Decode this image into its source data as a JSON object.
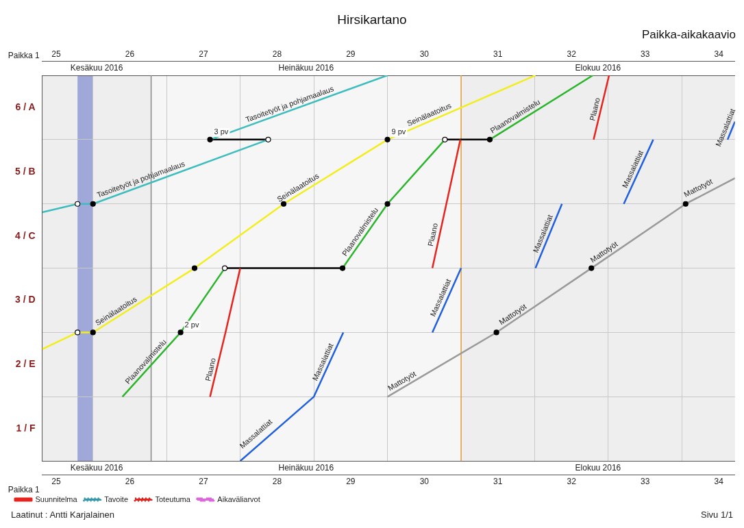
{
  "chart_data": {
    "type": "line",
    "title": "Hirsikartano",
    "subtitle": "Paikka-aikakaavio",
    "ylabel": "Paikka 1",
    "xlim": [
      25.31,
      34.72
    ],
    "ylim": [
      0,
      6
    ],
    "x2lim": [
      25.31,
      34.72
    ],
    "xticks": [
      {
        "value": 25.5,
        "label": "25"
      },
      {
        "value": 26,
        "label": null
      },
      {
        "value": 26.5,
        "label": "26"
      },
      {
        "value": 27,
        "label": null
      },
      {
        "value": 27.5,
        "label": "27"
      },
      {
        "value": 28,
        "label": null
      },
      {
        "value": 28.5,
        "label": "28"
      },
      {
        "value": 29,
        "label": null
      },
      {
        "value": 29.5,
        "label": "29"
      },
      {
        "value": 30,
        "label": null
      },
      {
        "value": 30.5,
        "label": "30"
      },
      {
        "value": 31,
        "label": null
      },
      {
        "value": 31.5,
        "label": "31"
      },
      {
        "value": 32,
        "label": null
      },
      {
        "value": 32.5,
        "label": "32"
      },
      {
        "value": 33,
        "label": null
      },
      {
        "value": 33.5,
        "label": "33"
      },
      {
        "value": 34,
        "label": null
      },
      {
        "value": 34.5,
        "label": "34"
      }
    ],
    "x2ticks": [
      {
        "value": 25.5,
        "label": "25"
      },
      {
        "value": 26.5,
        "label": "26"
      },
      {
        "value": 27.5,
        "label": "27"
      },
      {
        "value": 28.5,
        "label": "28"
      },
      {
        "value": 29.5,
        "label": "29"
      },
      {
        "value": 30.5,
        "label": "30"
      },
      {
        "value": 31.5,
        "label": "31"
      },
      {
        "value": 32.5,
        "label": "32"
      },
      {
        "value": 33.5,
        "label": "33"
      },
      {
        "value": 34.5,
        "label": "34"
      }
    ],
    "yticks": [
      {
        "value": 0,
        "label": null
      },
      {
        "value": 0.5,
        "label": "1 / F"
      },
      {
        "value": 1,
        "label": null
      },
      {
        "value": 1.5,
        "label": "2 / E"
      },
      {
        "value": 2,
        "label": null
      },
      {
        "value": 2.5,
        "label": "3 / D"
      },
      {
        "value": 3,
        "label": null
      },
      {
        "value": 3.5,
        "label": "4 / C"
      },
      {
        "value": 4,
        "label": null
      },
      {
        "value": 4.5,
        "label": "5 / B"
      },
      {
        "value": 5,
        "label": null
      },
      {
        "value": 5.5,
        "label": "6 / A"
      },
      {
        "value": 6,
        "label": null
      }
    ],
    "grid": true,
    "legend": "bottom",
    "marker": "none",
    "line_style": "solid",
    "series": [
      {
        "color": "#3dbdbd",
        "x": [
          25.31,
          25.79,
          26.0,
          28.38,
          null,
          27.59,
          30.0
        ],
        "values": [
          3.87,
          4,
          4,
          5,
          null,
          5,
          6
        ]
      },
      {
        "color": "#f2ee1e",
        "x": [
          25.31,
          25.79,
          26.0,
          27.38,
          28.59,
          30.0,
          32.01
        ],
        "values": [
          1.74,
          2,
          2,
          3,
          4,
          5,
          6
        ]
      },
      {
        "color": "#2bb52b",
        "x": [
          26.4,
          27.19,
          27.79,
          null,
          29.39,
          30.0,
          30.78,
          null,
          31.39,
          32.79
        ],
        "values": [
          1,
          2,
          3,
          null,
          3,
          4,
          5,
          null,
          5,
          6
        ]
      },
      {
        "color": "#e8231e",
        "x": [
          27.59,
          27.8,
          28.0,
          null,
          30.61,
          30.8,
          30.99,
          null,
          32.8,
          33.01
        ],
        "values": [
          1,
          2,
          3,
          null,
          3,
          4,
          5,
          null,
          5,
          6
        ]
      },
      {
        "color": "#1f5fe0",
        "x": [
          28.0,
          29.0,
          29.4,
          null,
          30.61,
          31.0,
          null,
          32.01,
          32.37,
          null,
          33.21,
          33.61,
          null,
          34.62,
          34.72
        ],
        "values": [
          0,
          1,
          2,
          null,
          2,
          3,
          null,
          3,
          4,
          null,
          4,
          5,
          null,
          5,
          5.28
        ]
      },
      {
        "color": "#9a9a9a",
        "x": [
          30.0,
          31.48,
          32.77,
          34.05,
          34.72
        ],
        "values": [
          1,
          2,
          3,
          4,
          4.4
        ]
      },
      {
        "color": "#000000",
        "x": [
          27.59,
          28.38,
          null,
          27.79,
          29.39,
          null,
          30.78,
          31.39
        ],
        "values": [
          5,
          5,
          null,
          3,
          3,
          null,
          5,
          5
        ]
      },
      {
        "type": "scatter",
        "marker": "circle",
        "color": "#000000",
        "x": [
          26.0,
          26.0,
          27.38,
          28.59,
          30.0,
          30.0,
          27.19,
          29.39,
          31.39,
          31.48,
          32.77,
          34.05,
          27.59
        ],
        "values": [
          4,
          2,
          3,
          4,
          4,
          5,
          2,
          3,
          5,
          2,
          3,
          4,
          5
        ]
      },
      {
        "type": "scatter",
        "marker": "circle",
        "color": "#ffffff",
        "x": [
          25.79,
          25.79,
          28.38,
          27.79,
          30.78
        ],
        "values": [
          4,
          2,
          5,
          3,
          5
        ]
      },
      {
        "name": "Suunnitelma",
        "color": "#e8231e",
        "line_style": "solid"
      },
      {
        "name": "Tavoite",
        "color": "#3399aa",
        "line_style": "dotted"
      },
      {
        "name": "Toteutuma",
        "color": "#e8231e",
        "line_style": "dotted"
      },
      {
        "name": "Aikaväliarvot",
        "color": "#dd66dd",
        "line_style": "dashed"
      }
    ],
    "ref_lines": [
      {
        "axis": "x",
        "value": 26.79,
        "color": "#888888"
      },
      {
        "axis": "x",
        "value": 31.0,
        "color": "#e8a040"
      }
    ],
    "bands": [
      {
        "axis": "x",
        "from": 25.79,
        "to": 26.0,
        "color": "#9fa8d8"
      },
      {
        "axis": "x",
        "from": 25.31,
        "to": 26.79,
        "label": "Kesäkuu 2016",
        "color": "#eeeeee"
      },
      {
        "axis": "x",
        "from": 26.79,
        "to": 31.0,
        "label": "Heinäkuu 2016",
        "color": "#f6f6f6"
      },
      {
        "axis": "x",
        "from": 31.0,
        "to": 34.72,
        "label": "Elokuu 2016",
        "color": "#eeeeee"
      }
    ],
    "annotations": [
      "Laatinut : Antti Karjalainen",
      "Sivu 1/1",
      {
        "text": "Tasoitetyöt ja pohjamaalaus",
        "x": 26.68,
        "y": 4.29
      },
      {
        "text": "Tasoitetyöt ja pohjamaalaus",
        "x": 28.7,
        "y": 5.46
      },
      {
        "text": "Seinälaatoitus",
        "x": 26.36,
        "y": 2.25
      },
      {
        "text": "Seinälaatoitus",
        "x": 28.83,
        "y": 4.17
      },
      {
        "text": "Seinälaatoitus",
        "x": 30.6,
        "y": 5.3
      },
      {
        "text": "Plaanovalmistelu",
        "x": 26.78,
        "y": 1.48
      },
      {
        "text": "Plaanovalmistelu",
        "x": 29.7,
        "y": 3.51
      },
      {
        "text": "Plaanovalmistelu",
        "x": 31.78,
        "y": 5.28
      },
      {
        "text": "Plaano",
        "x": 27.68,
        "y": 1.4
      },
      {
        "text": "Plaano",
        "x": 30.7,
        "y": 3.5
      },
      {
        "text": "Plaano",
        "x": 32.9,
        "y": 5.45
      },
      {
        "text": "Massalattiat",
        "x": 28.27,
        "y": 0.35
      },
      {
        "text": "Massalattiat",
        "x": 29.2,
        "y": 1.5
      },
      {
        "text": "Massalattiat",
        "x": 30.8,
        "y": 2.5
      },
      {
        "text": "Massalattiat",
        "x": 32.19,
        "y": 3.5
      },
      {
        "text": "Massalattiat",
        "x": 33.41,
        "y": 4.5
      },
      {
        "text": "Massalattiat",
        "x": 34.67,
        "y": 5.15
      },
      {
        "text": "Mattotyöt",
        "x": 30.24,
        "y": 1.16
      },
      {
        "text": "Mattotyöt",
        "x": 31.75,
        "y": 2.2
      },
      {
        "text": "Mattotyöt",
        "x": 32.99,
        "y": 3.17
      },
      {
        "text": "Mattotyöt",
        "x": 34.26,
        "y": 4.16
      },
      {
        "text": "3 pv",
        "x": 27.59,
        "y": 5
      },
      {
        "text": "9 pv",
        "x": 30.0,
        "y": 5
      },
      {
        "text": "2 pv",
        "x": 27.19,
        "y": 2
      }
    ]
  }
}
